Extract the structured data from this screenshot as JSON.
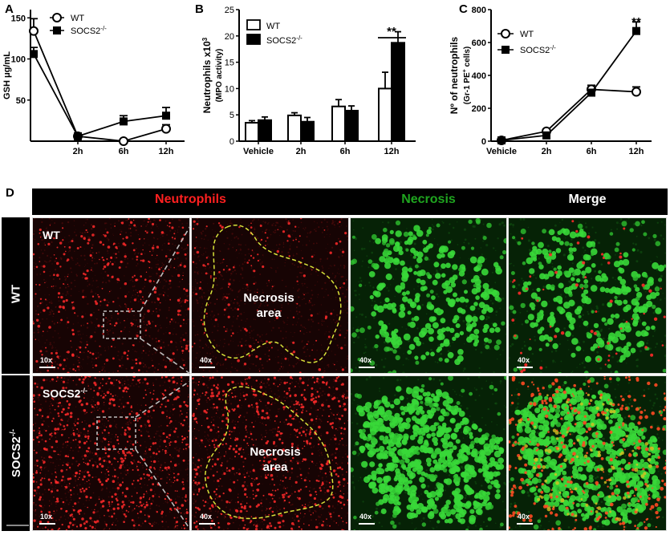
{
  "panels": {
    "a": "A",
    "b": "B",
    "c": "C",
    "d": "D"
  },
  "chart_data": [
    {
      "panel": "A",
      "type": "line",
      "ylabel": "GSH μg/mL",
      "xlabel": "",
      "categories": [
        "",
        "2h",
        "6h",
        "12h"
      ],
      "yticks": [
        "50",
        "100",
        "150"
      ],
      "ylim": [
        0,
        160
      ],
      "legend": [
        "WT",
        "SOCS2-/-"
      ],
      "series": [
        {
          "name": "WT",
          "marker": "open-circle",
          "values": [
            134,
            6,
            0,
            15
          ],
          "errors": [
            15,
            3,
            2,
            5
          ]
        },
        {
          "name": "SOCS2-/-",
          "marker": "filled-square",
          "values": [
            106,
            6,
            24,
            31
          ],
          "errors": [
            8,
            3,
            7,
            10
          ]
        }
      ]
    },
    {
      "panel": "B",
      "type": "bar",
      "ylabel": "Neutrophils x10",
      "ylabel_sup": "3",
      "ylabel2": "(MPO activity)",
      "categories": [
        "Vehicle",
        "2h",
        "6h",
        "12h"
      ],
      "yticks": [
        "0",
        "5",
        "10",
        "15",
        "20",
        "25"
      ],
      "ylim": [
        0,
        25
      ],
      "legend": [
        "WT",
        "SOCS2-/-"
      ],
      "series": [
        {
          "name": "WT",
          "color": "#ffffff",
          "values": [
            3.5,
            4.9,
            6.6,
            10.0
          ],
          "errors": [
            0.4,
            0.5,
            1.3,
            3.1
          ]
        },
        {
          "name": "SOCS2-/-",
          "color": "#000000",
          "values": [
            4.0,
            3.7,
            5.8,
            18.7
          ],
          "errors": [
            0.6,
            0.8,
            0.9,
            2.1
          ]
        }
      ],
      "annotation": "**"
    },
    {
      "panel": "C",
      "type": "line",
      "ylabel": "Nº of neutrophils",
      "ylabel2_pre": "(Gr-1 PE",
      "ylabel2_sup": "+",
      "ylabel2_post": " cells)",
      "categories": [
        "Vehicle",
        "2h",
        "6h",
        "12h"
      ],
      "yticks": [
        "0",
        "200",
        "400",
        "600",
        "800"
      ],
      "ylim": [
        0,
        800
      ],
      "legend": [
        "WT",
        "SOCS2-/-"
      ],
      "series": [
        {
          "name": "WT",
          "marker": "open-circle",
          "values": [
            5,
            60,
            315,
            300
          ],
          "errors": [
            3,
            12,
            25,
            30
          ]
        },
        {
          "name": "SOCS2-/-",
          "marker": "filled-square",
          "values": [
            5,
            35,
            295,
            670
          ],
          "errors": [
            3,
            8,
            20,
            55
          ]
        }
      ],
      "annotation": "**"
    }
  ],
  "microscopy": {
    "headers": {
      "neutrophils": "Neutrophils",
      "necrosis": "Necrosis",
      "merge": "Merge"
    },
    "row_labels": {
      "wt": "WT",
      "socs_base": "SOCS2",
      "socs_sup": "-/-"
    },
    "overlays": {
      "wt_label": "WT",
      "socs_label_base": "SOCS2",
      "socs_label_sup": "-/-",
      "mag_10x": "10x",
      "mag_40x": "40x",
      "necrosis_line1": "Necrosis",
      "necrosis_line2": "area"
    },
    "colors": {
      "neutrophils": "#ff2a2a",
      "necrosis": "#1fa51f",
      "merge": "#ffffff",
      "tissue_dark": "#170404",
      "tissue_green": "#062206",
      "outline": "#d8e23a"
    }
  }
}
